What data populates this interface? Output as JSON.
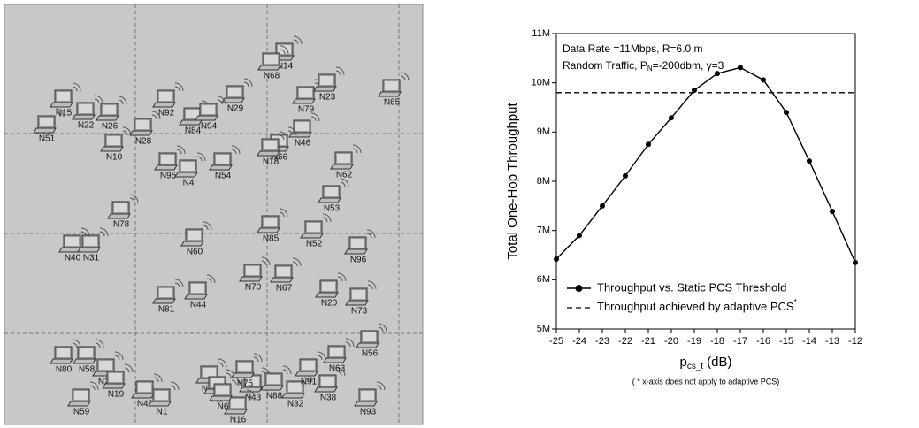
{
  "network": {
    "nodes": [
      "N14",
      "N68",
      "N15",
      "N22",
      "N26",
      "N92",
      "N29",
      "N79",
      "N23",
      "N65",
      "N51",
      "N28",
      "N84",
      "N94",
      "N46",
      "N10",
      "N66",
      "N18",
      "N95",
      "N4",
      "N54",
      "N62",
      "N78",
      "N53",
      "N40",
      "N31",
      "N60",
      "N85",
      "N52",
      "N96",
      "N70",
      "N67",
      "N81",
      "N44",
      "N20",
      "N73",
      "N80",
      "N58",
      "N27",
      "N19",
      "N42",
      "N1",
      "N33",
      "N5",
      "N43",
      "N88",
      "N32",
      "N91",
      "N38",
      "N63",
      "N56",
      "N59",
      "N16",
      "N93",
      "N6",
      "N75"
    ]
  },
  "chart_data": {
    "type": "line",
    "ylabel": "Total One-Hop Throughput",
    "xlabel": {
      "main": "p",
      "sub": "cs_t",
      "unit": "(dB)"
    },
    "note": "( * x-axis does not apply to adaptive PCS)",
    "annotations": [
      {
        "parts": [
          "Data Rate =11Mbps, R=6.0 m"
        ]
      },
      {
        "parts": [
          "Random Traffic, P",
          "N",
          "=-200dbm, ",
          "γ",
          "=3"
        ]
      }
    ],
    "x": [
      -25,
      -24,
      -23,
      -22,
      -21,
      -20,
      -19,
      -18,
      -17,
      -16,
      -15,
      -14,
      -13,
      -12
    ],
    "series": [
      {
        "name": "Throughput vs. Static PCS Threshold",
        "color": "#000000",
        "values": [
          6420000,
          6900000,
          7500000,
          8110000,
          8750000,
          9290000,
          9850000,
          10190000,
          10310000,
          10060000,
          9400000,
          8410000,
          7390000,
          6350000
        ]
      }
    ],
    "reference_line": {
      "name": "Throughput achieved by adaptive PCS",
      "name_note": "*",
      "value": 9800000,
      "color": "#000000"
    },
    "xlim": [
      -25,
      -12
    ],
    "xticks": [
      -25,
      -24,
      -23,
      -22,
      -21,
      -20,
      -19,
      -18,
      -17,
      -16,
      -15,
      -14,
      -13,
      -12
    ],
    "ylim": [
      5000000,
      11000000
    ],
    "yticks": [
      {
        "value": 5000000,
        "label": "5M"
      },
      {
        "value": 6000000,
        "label": "6M"
      },
      {
        "value": 7000000,
        "label": "7M"
      },
      {
        "value": 8000000,
        "label": "8M"
      },
      {
        "value": 9000000,
        "label": "9M"
      },
      {
        "value": 10000000,
        "label": "10M"
      },
      {
        "value": 11000000,
        "label": "11M"
      }
    ]
  }
}
